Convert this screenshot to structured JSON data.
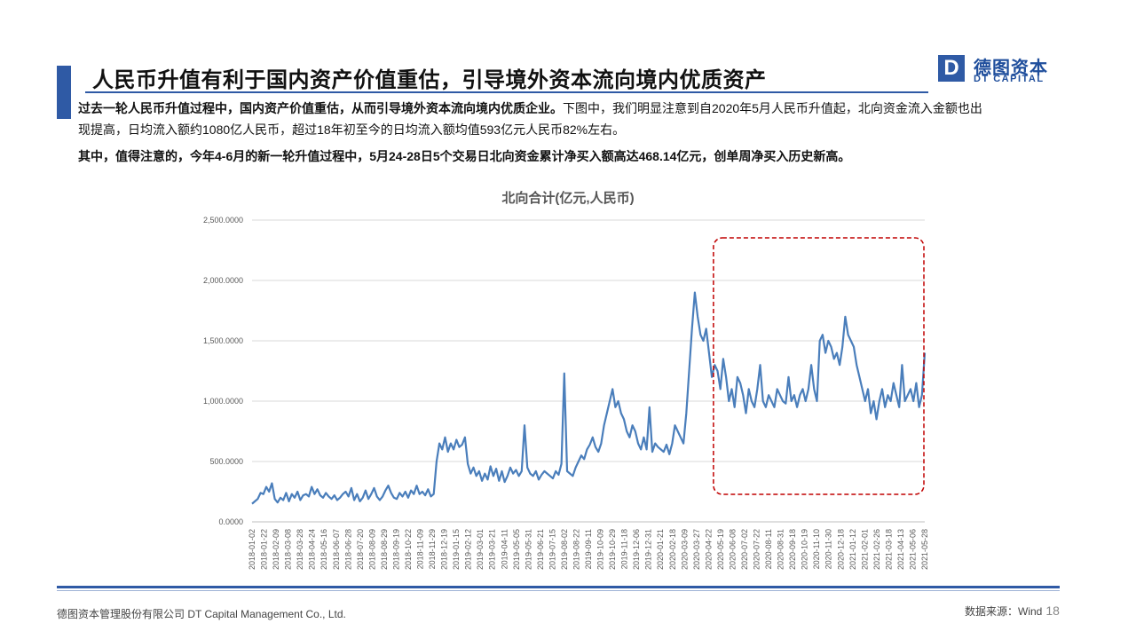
{
  "header": {
    "title": "人民币升值有利于国内资产价值重估，引导境外资本流向境内优质资产",
    "logo_letter": "D",
    "logo_cn": "德图资本",
    "logo_en": "DT CAPITAL"
  },
  "body": {
    "p1_bold": "过去一轮人民币升值过程中，国内资产价值重估，从而引导境外资本流向境内优质企业。",
    "p1_rest": "下图中，我们明显注意到自2020年5月人民币升值起，北向资金流入金额也出现提高，日均流入额约1080亿人民币，超过18年初至今的日均流入额均值593亿元人民币82%左右。",
    "p2": "其中，值得注意的，今年4-6月的新一轮升值过程中，5月24-28日5个交易日北向资金累计净买入额高达468.14亿元，创单周净买入历史新高。"
  },
  "footer": {
    "company": "德图资本管理股份有限公司 DT Capital Management Co., Ltd.",
    "source": "数据来源：Wind",
    "page": "18"
  },
  "colors": {
    "accent": "#2f5aa5",
    "series": "#4a7ebb",
    "highlight_box": "#c00000",
    "grid": "#d9d9d9"
  },
  "chart_data": {
    "type": "line",
    "title": "北向合计(亿元,人民币)",
    "xlabel": "",
    "ylabel": "",
    "ylim": [
      0,
      2500
    ],
    "y_ticks": [
      "0.0000",
      "500.0000",
      "1,000.0000",
      "1,500.0000",
      "2,000.0000",
      "2,500.0000"
    ],
    "y_tick_values": [
      0,
      500,
      1000,
      1500,
      2000,
      2500
    ],
    "grid": true,
    "legend": "none",
    "x_tick_labels": [
      "2018-01-02",
      "2018-01-22",
      "2018-02-09",
      "2018-03-08",
      "2018-03-28",
      "2018-04-24",
      "2018-05-16",
      "2018-06-07",
      "2018-06-28",
      "2018-07-20",
      "2018-08-09",
      "2018-08-29",
      "2018-09-19",
      "2018-10-22",
      "2018-11-09",
      "2018-11-29",
      "2018-12-19",
      "2019-01-15",
      "2019-02-12",
      "2019-03-01",
      "2019-03-21",
      "2019-04-11",
      "2019-05-05",
      "2019-05-31",
      "2019-06-21",
      "2019-07-15",
      "2019-08-02",
      "2019-08-22",
      "2019-09-11",
      "2019-10-09",
      "2019-10-29",
      "2019-11-18",
      "2019-12-06",
      "2019-12-31",
      "2020-01-21",
      "2020-02-18",
      "2020-03-09",
      "2020-03-27",
      "2020-04-22",
      "2020-05-19",
      "2020-06-08",
      "2020-07-02",
      "2020-07-22",
      "2020-08-11",
      "2020-08-31",
      "2020-09-18",
      "2020-10-19",
      "2020-11-10",
      "2020-11-30",
      "2020-12-18",
      "2021-01-12",
      "2021-02-01",
      "2021-02-26",
      "2021-03-18",
      "2021-04-13",
      "2021-05-06",
      "2021-05-28"
    ],
    "series": [
      {
        "values": [
          150,
          170,
          190,
          240,
          230,
          290,
          250,
          320,
          190,
          160,
          200,
          180,
          240,
          170,
          230,
          200,
          250,
          180,
          220,
          230,
          210,
          290,
          230,
          270,
          220,
          200,
          240,
          210,
          190,
          220,
          180,
          200,
          230,
          250,
          210,
          280,
          180,
          230,
          170,
          200,
          260,
          190,
          230,
          280,
          210,
          180,
          210,
          260,
          300,
          240,
          200,
          190,
          240,
          210,
          250,
          200,
          260,
          230,
          300,
          230,
          250,
          220,
          270,
          210,
          230,
          500,
          650,
          600,
          700,
          580,
          650,
          600,
          680,
          620,
          640,
          700,
          480,
          400,
          450,
          380,
          420,
          340,
          400,
          350,
          460,
          380,
          440,
          340,
          420,
          330,
          380,
          450,
          400,
          430,
          380,
          420,
          800,
          450,
          400,
          380,
          420,
          350,
          390,
          420,
          400,
          380,
          360,
          420,
          390,
          480,
          1230,
          420,
          400,
          380,
          450,
          500,
          550,
          520,
          600,
          640,
          700,
          620,
          580,
          650,
          800,
          900,
          1000,
          1100,
          950,
          1000,
          900,
          850,
          750,
          700,
          800,
          750,
          650,
          600,
          700,
          600,
          950,
          580,
          650,
          620,
          600,
          580,
          640,
          560,
          650,
          800,
          750,
          700,
          650,
          900,
          1250,
          1600,
          1900,
          1700,
          1550,
          1500,
          1600,
          1400,
          1200,
          1300,
          1250,
          1100,
          1350,
          1200,
          1000,
          1100,
          950,
          1200,
          1150,
          1050,
          900,
          1100,
          1000,
          950,
          1100,
          1300,
          1000,
          950,
          1050,
          1000,
          950,
          1100,
          1050,
          1000,
          980,
          1200,
          1000,
          1050,
          950,
          1050,
          1100,
          1000,
          1100,
          1300,
          1100,
          1000,
          1500,
          1550,
          1400,
          1500,
          1450,
          1350,
          1400,
          1300,
          1450,
          1700,
          1550,
          1500,
          1450,
          1300,
          1200,
          1100,
          1000,
          1100,
          900,
          1000,
          850,
          1000,
          1100,
          950,
          1050,
          1000,
          1150,
          1050,
          950,
          1300,
          1000,
          1050,
          1100,
          1000,
          1150,
          950,
          1050,
          1400
        ]
      }
    ],
    "annotations": [
      "highlight box: 2020-05-19 to 2021-05-28 (upswing period)"
    ]
  }
}
